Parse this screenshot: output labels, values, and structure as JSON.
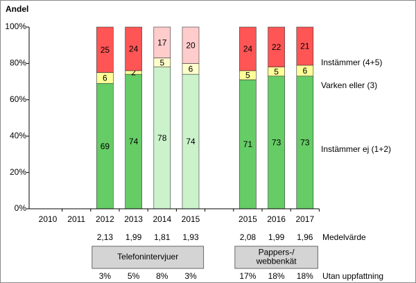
{
  "chart_data": {
    "type": "stacked-bar",
    "y_axis_label": "Andel",
    "categories": [
      "2010",
      "2011",
      "2012",
      "2013",
      "2014",
      "2015",
      null,
      "2015",
      "2016",
      "2017"
    ],
    "ylim": [
      0,
      100
    ],
    "yticks": [
      {
        "value": 0,
        "label": "0%"
      },
      {
        "value": 20,
        "label": "20%"
      },
      {
        "value": 40,
        "label": "40%"
      },
      {
        "value": 60,
        "label": "60%"
      },
      {
        "value": 80,
        "label": "80%"
      },
      {
        "value": 100,
        "label": "100%"
      }
    ],
    "series": [
      {
        "name": "Instämmer ej (1+2)",
        "values": [
          null,
          null,
          69,
          74,
          78,
          74,
          null,
          71,
          73,
          73
        ],
        "colors": [
          "#66cc66",
          "#66cc66",
          "#66cc66",
          "#66cc66",
          "#ccf2cc",
          "#ccf2cc",
          "#66cc66",
          "#66cc66",
          "#66cc66",
          "#66cc66"
        ]
      },
      {
        "name": "Varken eller (3)",
        "values": [
          null,
          null,
          6,
          2,
          5,
          6,
          null,
          5,
          5,
          6
        ],
        "colors": [
          "#ffff99",
          "#ffff99",
          "#ffff99",
          "#ffff99",
          "#ffffcc",
          "#ffffcc",
          "#ffff99",
          "#ffff99",
          "#ffff99",
          "#ffff99"
        ]
      },
      {
        "name": "Instämmer (4+5)",
        "values": [
          null,
          null,
          25,
          24,
          17,
          20,
          null,
          24,
          22,
          21
        ],
        "colors": [
          "#ff5555",
          "#ff5555",
          "#ff5555",
          "#ff5555",
          "#ffcccc",
          "#ffcccc",
          "#ff5555",
          "#ff5555",
          "#ff5555",
          "#ff5555"
        ]
      }
    ],
    "rows": [
      {
        "name": "Medelvärde",
        "values": [
          null,
          null,
          2.13,
          1.99,
          1.81,
          1.93,
          null,
          2.08,
          1.99,
          1.96
        ],
        "value_labels": [
          null,
          null,
          "2,13",
          "1,99",
          "1,81",
          "1,93",
          null,
          "2,08",
          "1,99",
          "1,96"
        ]
      },
      {
        "name": "Utan uppfattning",
        "values": [
          null,
          null,
          3,
          5,
          8,
          3,
          null,
          17,
          18,
          18
        ],
        "value_labels": [
          null,
          null,
          "3%",
          "5%",
          "8%",
          "3%",
          null,
          "17%",
          "18%",
          "18%"
        ]
      }
    ],
    "groups": [
      {
        "label": "Telefonintervjuer",
        "from": 2,
        "to": 5
      },
      {
        "label": "Pappers-/\nwebbenkät",
        "from": 7,
        "to": 9
      }
    ]
  }
}
